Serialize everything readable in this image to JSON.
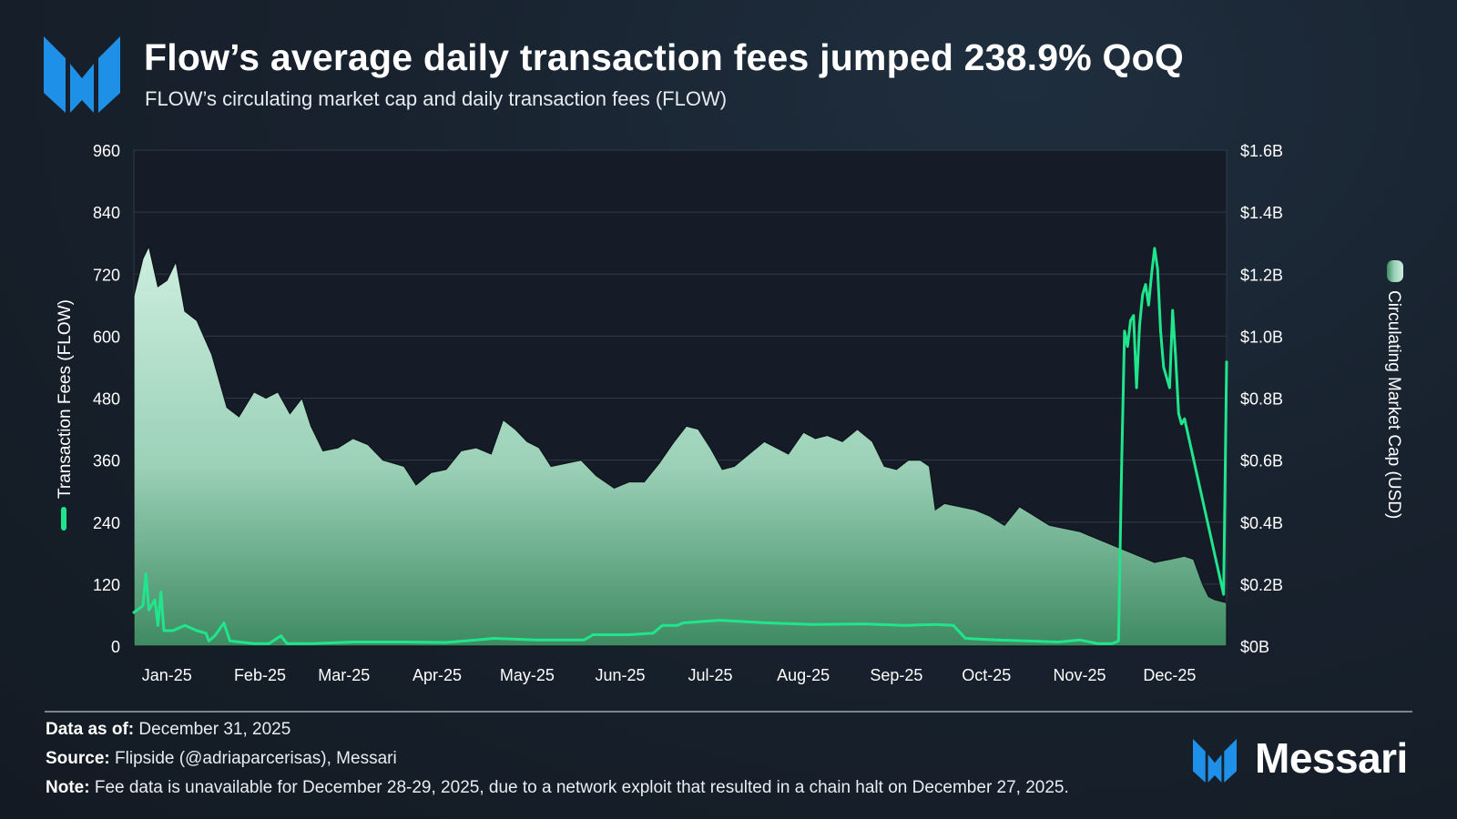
{
  "header": {
    "title": "Flow’s average daily transaction fees jumped 238.9% QoQ",
    "subtitle": "FLOW’s circulating market cap and daily transaction fees (FLOW)"
  },
  "footer": {
    "data_as_of_label": "Data as of:",
    "data_as_of_value": "December 31, 2025",
    "source_label": "Source:",
    "source_value": "Flipside (@adriaparcerisas), Messari",
    "note_label": "Note:",
    "note_value": "Fee data is unavailable for December 28-29, 2025, due to a network exploit that resulted in a chain halt on December 27, 2025."
  },
  "brand": {
    "name": "Messari"
  },
  "colors": {
    "fees_line": "#21e58c",
    "market_cap_top": "#cdeee0",
    "market_cap_bottom": "#3e8a62",
    "background": "#18222e"
  },
  "chart_data": {
    "type": "area",
    "title": "Flow’s average daily transaction fees jumped 238.9% QoQ",
    "subtitle": "FLOW’s circulating market cap and daily transaction fees (FLOW)",
    "x_ticks": [
      "Jan-25",
      "Feb-25",
      "Mar-25",
      "Apr-25",
      "May-25",
      "Jun-25",
      "Jul-25",
      "Aug-25",
      "Sep-25",
      "Oct-25",
      "Nov-25",
      "Dec-25"
    ],
    "x_range": [
      "2025-01-01",
      "2025-12-31"
    ],
    "y_left": {
      "label": "Transaction Fees (FLOW)",
      "range": [
        0,
        960
      ],
      "ticks": [
        "0",
        "120",
        "240",
        "360",
        "480",
        "600",
        "720",
        "840",
        "960"
      ]
    },
    "y_right": {
      "label": "Circulating Market Cap (USD)",
      "range": [
        0,
        1.6
      ],
      "unit": "$B",
      "ticks": [
        "$0B",
        "$0.2B",
        "$0.4B",
        "$0.6B",
        "$0.8B",
        "$1.0B",
        "$1.2B",
        "$1.4B",
        "$1.6B"
      ]
    },
    "grid": true,
    "series": [
      {
        "name": "Circulating Market Cap (USD)",
        "type": "area",
        "axis": "right",
        "points": [
          [
            "2025-01-01",
            1.13
          ],
          [
            "2025-01-04",
            1.25
          ],
          [
            "2025-01-06",
            1.29
          ],
          [
            "2025-01-09",
            1.16
          ],
          [
            "2025-01-12",
            1.18
          ],
          [
            "2025-01-15",
            1.24
          ],
          [
            "2025-01-18",
            1.08
          ],
          [
            "2025-01-22",
            1.05
          ],
          [
            "2025-01-27",
            0.94
          ],
          [
            "2025-02-01",
            0.77
          ],
          [
            "2025-02-05",
            0.74
          ],
          [
            "2025-02-10",
            0.82
          ],
          [
            "2025-02-14",
            0.8
          ],
          [
            "2025-02-18",
            0.82
          ],
          [
            "2025-02-22",
            0.75
          ],
          [
            "2025-02-26",
            0.8
          ],
          [
            "2025-03-01",
            0.71
          ],
          [
            "2025-03-05",
            0.63
          ],
          [
            "2025-03-10",
            0.64
          ],
          [
            "2025-03-15",
            0.67
          ],
          [
            "2025-03-20",
            0.65
          ],
          [
            "2025-03-25",
            0.6
          ],
          [
            "2025-04-01",
            0.58
          ],
          [
            "2025-04-05",
            0.52
          ],
          [
            "2025-04-10",
            0.56
          ],
          [
            "2025-04-15",
            0.57
          ],
          [
            "2025-04-20",
            0.63
          ],
          [
            "2025-04-25",
            0.64
          ],
          [
            "2025-04-30",
            0.62
          ],
          [
            "2025-05-04",
            0.73
          ],
          [
            "2025-05-08",
            0.7
          ],
          [
            "2025-05-12",
            0.66
          ],
          [
            "2025-05-16",
            0.64
          ],
          [
            "2025-05-20",
            0.58
          ],
          [
            "2025-05-25",
            0.59
          ],
          [
            "2025-05-30",
            0.6
          ],
          [
            "2025-06-04",
            0.55
          ],
          [
            "2025-06-10",
            0.51
          ],
          [
            "2025-06-15",
            0.53
          ],
          [
            "2025-06-20",
            0.53
          ],
          [
            "2025-06-25",
            0.59
          ],
          [
            "2025-06-30",
            0.66
          ],
          [
            "2025-07-04",
            0.71
          ],
          [
            "2025-07-08",
            0.7
          ],
          [
            "2025-07-12",
            0.64
          ],
          [
            "2025-07-16",
            0.57
          ],
          [
            "2025-07-20",
            0.58
          ],
          [
            "2025-07-25",
            0.62
          ],
          [
            "2025-07-30",
            0.66
          ],
          [
            "2025-08-03",
            0.64
          ],
          [
            "2025-08-07",
            0.62
          ],
          [
            "2025-08-12",
            0.69
          ],
          [
            "2025-08-16",
            0.67
          ],
          [
            "2025-08-20",
            0.68
          ],
          [
            "2025-08-25",
            0.66
          ],
          [
            "2025-08-30",
            0.7
          ],
          [
            "2025-09-04",
            0.66
          ],
          [
            "2025-09-08",
            0.58
          ],
          [
            "2025-09-12",
            0.57
          ],
          [
            "2025-09-16",
            0.6
          ],
          [
            "2025-09-20",
            0.6
          ],
          [
            "2025-09-23",
            0.58
          ],
          [
            "2025-09-25",
            0.44
          ],
          [
            "2025-09-28",
            0.46
          ],
          [
            "2025-10-03",
            0.45
          ],
          [
            "2025-10-08",
            0.44
          ],
          [
            "2025-10-13",
            0.42
          ],
          [
            "2025-10-18",
            0.39
          ],
          [
            "2025-10-23",
            0.45
          ],
          [
            "2025-10-28",
            0.42
          ],
          [
            "2025-11-02",
            0.39
          ],
          [
            "2025-11-07",
            0.38
          ],
          [
            "2025-11-12",
            0.37
          ],
          [
            "2025-11-17",
            0.35
          ],
          [
            "2025-11-22",
            0.33
          ],
          [
            "2025-11-27",
            0.31
          ],
          [
            "2025-12-02",
            0.29
          ],
          [
            "2025-12-07",
            0.27
          ],
          [
            "2025-12-12",
            0.28
          ],
          [
            "2025-12-17",
            0.29
          ],
          [
            "2025-12-20",
            0.28
          ],
          [
            "2025-12-23",
            0.2
          ],
          [
            "2025-12-25",
            0.16
          ],
          [
            "2025-12-27",
            0.15
          ],
          [
            "2025-12-31",
            0.14
          ]
        ]
      },
      {
        "name": "Transaction Fees (FLOW)",
        "type": "line",
        "axis": "left",
        "points": [
          [
            "2025-01-01",
            65
          ],
          [
            "2025-01-04",
            78
          ],
          [
            "2025-01-05",
            140
          ],
          [
            "2025-01-06",
            70
          ],
          [
            "2025-01-08",
            90
          ],
          [
            "2025-01-09",
            40
          ],
          [
            "2025-01-10",
            105
          ],
          [
            "2025-01-11",
            30
          ],
          [
            "2025-01-14",
            30
          ],
          [
            "2025-01-18",
            40
          ],
          [
            "2025-01-22",
            30
          ],
          [
            "2025-01-25",
            25
          ],
          [
            "2025-01-26",
            10
          ],
          [
            "2025-01-28",
            20
          ],
          [
            "2025-01-31",
            45
          ],
          [
            "2025-02-02",
            10
          ],
          [
            "2025-02-10",
            5
          ],
          [
            "2025-02-15",
            5
          ],
          [
            "2025-02-19",
            20
          ],
          [
            "2025-02-21",
            5
          ],
          [
            "2025-03-01",
            5
          ],
          [
            "2025-03-15",
            8
          ],
          [
            "2025-04-01",
            8
          ],
          [
            "2025-04-15",
            7
          ],
          [
            "2025-05-01",
            15
          ],
          [
            "2025-05-15",
            12
          ],
          [
            "2025-05-31",
            12
          ],
          [
            "2025-06-03",
            22
          ],
          [
            "2025-06-15",
            22
          ],
          [
            "2025-06-23",
            25
          ],
          [
            "2025-06-26",
            40
          ],
          [
            "2025-07-01",
            40
          ],
          [
            "2025-07-03",
            45
          ],
          [
            "2025-07-15",
            50
          ],
          [
            "2025-07-31",
            45
          ],
          [
            "2025-08-15",
            42
          ],
          [
            "2025-09-01",
            43
          ],
          [
            "2025-09-15",
            40
          ],
          [
            "2025-09-25",
            42
          ],
          [
            "2025-10-01",
            40
          ],
          [
            "2025-10-05",
            15
          ],
          [
            "2025-10-15",
            12
          ],
          [
            "2025-10-25",
            10
          ],
          [
            "2025-11-05",
            8
          ],
          [
            "2025-11-12",
            12
          ],
          [
            "2025-11-18",
            5
          ],
          [
            "2025-11-23",
            5
          ],
          [
            "2025-11-25",
            10
          ],
          [
            "2025-11-26",
            340
          ],
          [
            "2025-11-27",
            610
          ],
          [
            "2025-11-28",
            580
          ],
          [
            "2025-11-29",
            630
          ],
          [
            "2025-11-30",
            640
          ],
          [
            "2025-12-01",
            500
          ],
          [
            "2025-12-02",
            620
          ],
          [
            "2025-12-03",
            680
          ],
          [
            "2025-12-04",
            700
          ],
          [
            "2025-12-05",
            660
          ],
          [
            "2025-12-06",
            720
          ],
          [
            "2025-12-07",
            770
          ],
          [
            "2025-12-08",
            730
          ],
          [
            "2025-12-09",
            610
          ],
          [
            "2025-12-10",
            540
          ],
          [
            "2025-12-11",
            520
          ],
          [
            "2025-12-12",
            500
          ],
          [
            "2025-12-13",
            650
          ],
          [
            "2025-12-14",
            560
          ],
          [
            "2025-12-15",
            450
          ],
          [
            "2025-12-16",
            430
          ],
          [
            "2025-12-17",
            440
          ],
          [
            "2025-12-30",
            100
          ],
          [
            "2025-12-31",
            550
          ]
        ]
      }
    ]
  }
}
